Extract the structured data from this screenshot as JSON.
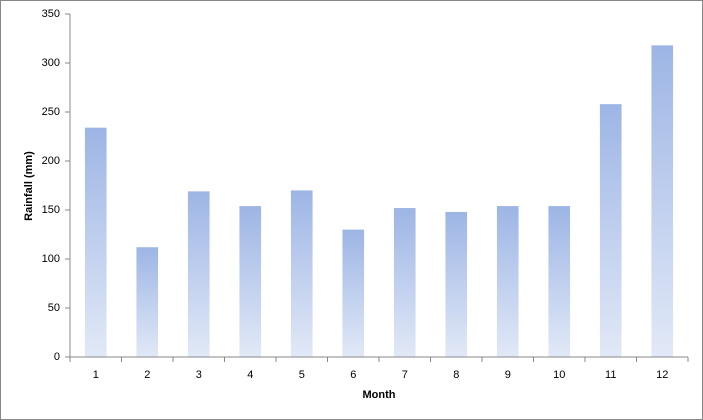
{
  "chart_data": {
    "type": "bar",
    "x_label": "Month",
    "y_label": "Rainfall  (mm)",
    "categories": [
      "1",
      "2",
      "3",
      "4",
      "5",
      "6",
      "7",
      "8",
      "9",
      "10",
      "11",
      "12"
    ],
    "values": [
      234,
      112,
      169,
      154,
      170,
      130,
      152,
      148,
      154,
      154,
      258,
      318
    ],
    "color": "#9db5e5",
    "ylim": [
      0,
      350
    ],
    "yticks": [
      0,
      50,
      100,
      150,
      200,
      250,
      300,
      350
    ],
    "grid": false
  }
}
